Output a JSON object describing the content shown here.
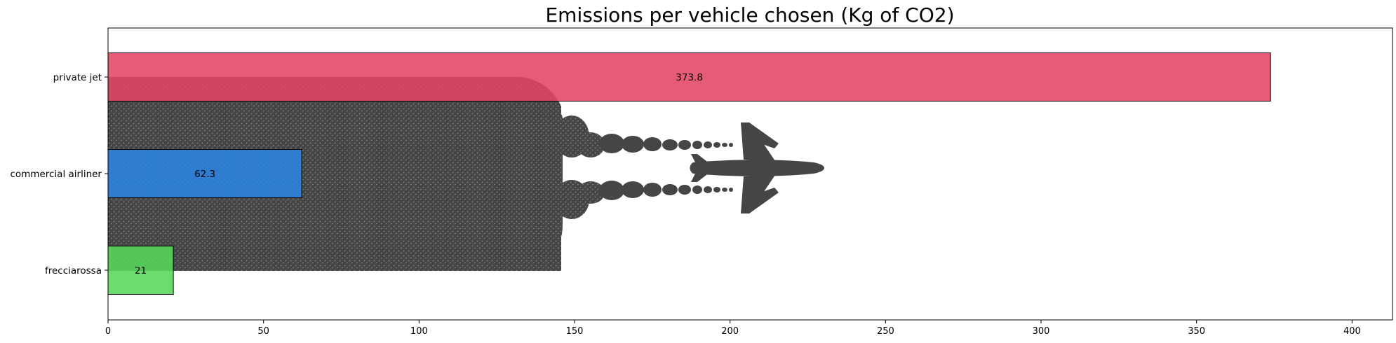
{
  "chart_data": {
    "type": "bar",
    "orientation": "horizontal",
    "title": "Emissions per vehicle chosen (Kg of CO2)",
    "xlabel": "",
    "ylabel": "",
    "categories": [
      "private jet",
      "commercial airliner",
      "frecciarossa"
    ],
    "values": [
      373.8,
      62.3,
      21
    ],
    "value_labels": [
      "373.8",
      "62.3",
      "21"
    ],
    "colors": [
      "#e34463",
      "#2a84e2",
      "#56d85a"
    ],
    "xlim": [
      0,
      413
    ],
    "xticks": [
      0,
      50,
      100,
      150,
      200,
      250,
      300,
      350,
      400
    ],
    "xtick_labels": [
      "0",
      "50",
      "100",
      "150",
      "200",
      "250",
      "300",
      "350",
      "400"
    ],
    "grid": false,
    "background_image": "airplane-contrail-icon",
    "background_color": "#454545"
  }
}
